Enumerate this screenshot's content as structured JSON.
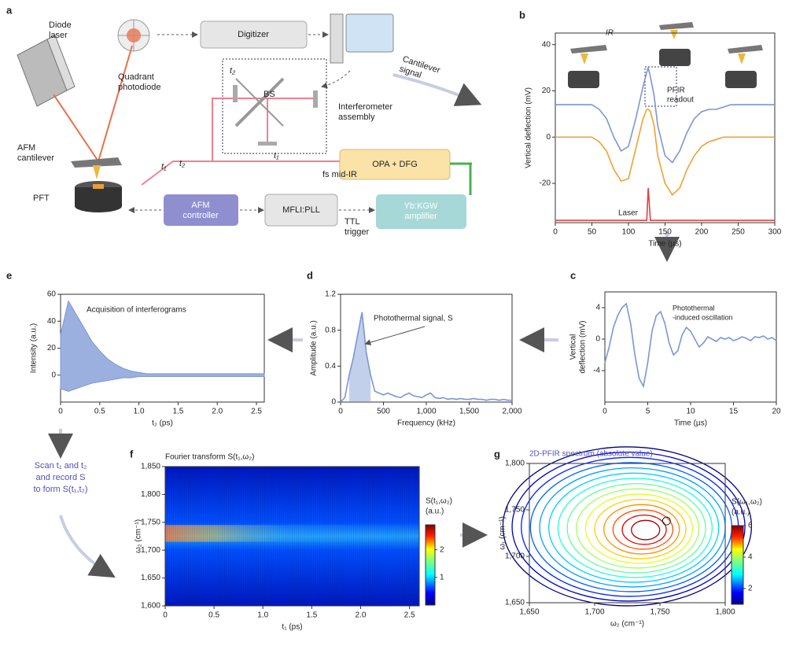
{
  "diagram": {
    "panel": "a",
    "labels": [
      [
        "Diode",
        "laser"
      ],
      [
        "Quadrant",
        "photodiode"
      ],
      [
        "Digitizer"
      ],
      [
        "Cantilever",
        "signal"
      ],
      [
        "BS"
      ],
      [
        "Interferometer",
        "assembly"
      ],
      [
        "AFM",
        "cantilever"
      ],
      [
        "PFT"
      ],
      [
        "fs mid-IR"
      ],
      [
        "OPA + DFG"
      ],
      [
        "AFM",
        "controller"
      ],
      [
        "MFLI:PLL"
      ],
      [
        "TTL",
        "trigger"
      ],
      [
        "Yb:KGW",
        "amplifier"
      ],
      [
        "t₁"
      ],
      [
        "t₂"
      ],
      [
        "t₁"
      ],
      [
        "t₂"
      ]
    ]
  },
  "side_note": [
    "Scan t₁ and t₂",
    "and record S",
    "to form S(t₁,t₂)"
  ],
  "chart_data": [
    {
      "type": "line",
      "panel": "b",
      "xlabel": "Time (µs)",
      "ylabel": "Vertical deflection (mV)",
      "x": [
        0,
        10,
        20,
        30,
        40,
        50,
        60,
        70,
        80,
        90,
        100,
        110,
        120,
        125,
        127,
        130,
        135,
        140,
        150,
        160,
        170,
        180,
        190,
        200,
        210,
        220,
        230,
        240,
        250,
        260,
        270,
        280,
        290,
        300
      ],
      "series": [
        {
          "color": "#7b96d4",
          "values": [
            14,
            14,
            14,
            14,
            14,
            14,
            12,
            8,
            0,
            -6,
            -4,
            8,
            22,
            28,
            30,
            26,
            18,
            5,
            -8,
            -11,
            -6,
            2,
            8,
            11,
            12,
            12,
            13,
            14,
            14,
            14,
            14,
            14,
            14,
            14
          ]
        },
        {
          "color": "#f0a030",
          "values": [
            0,
            0,
            0,
            0,
            0,
            0,
            -2,
            -6,
            -14,
            -19,
            -18,
            -5,
            8,
            12,
            12,
            11,
            5,
            -8,
            -20,
            -25,
            -22,
            -14,
            -8,
            -4,
            -2,
            -1,
            0,
            0,
            0,
            0,
            0,
            0,
            0,
            0
          ]
        },
        {
          "color": "#e04040",
          "values": [
            -36,
            -36,
            -36,
            -36,
            -36,
            -36,
            -36,
            -36,
            -36,
            -36,
            -36,
            -36,
            -36,
            -36,
            -22,
            -36,
            -36,
            -36,
            -36,
            -36,
            -36,
            -36,
            -36,
            -36,
            -36,
            -36,
            -36,
            -36,
            -36,
            -36,
            -36,
            -36,
            -36,
            -36
          ]
        }
      ],
      "xlim": [
        0,
        300
      ],
      "xticks": [
        0,
        50,
        100,
        150,
        200,
        250,
        300
      ],
      "ylim": [
        -37,
        45
      ],
      "yticks": [
        -20,
        0,
        20,
        40
      ],
      "annotations": [
        "IR",
        "PFIR",
        "readout",
        "Laser"
      ]
    },
    {
      "type": "line",
      "panel": "c",
      "xlabel": "Time (µs)",
      "ylabel": [
        "Vertical",
        "deflection (mV)"
      ],
      "x": [
        0,
        0.5,
        1,
        1.5,
        2,
        2.5,
        3,
        3.5,
        4,
        4.5,
        5,
        5.5,
        6,
        6.5,
        7,
        7.5,
        8,
        8.5,
        9,
        9.5,
        10,
        10.5,
        11,
        11.5,
        12,
        12.5,
        13,
        13.5,
        14,
        14.5,
        15,
        15.5,
        16,
        16.5,
        17,
        17.5,
        18,
        18.5,
        19,
        19.5,
        20
      ],
      "series": [
        {
          "color": "#7b96d4",
          "values": [
            -3,
            -1,
            1.5,
            3,
            4,
            4.5,
            2,
            -2,
            -5,
            -6,
            -3,
            1,
            3,
            3.5,
            2,
            -0.5,
            -2,
            -1.5,
            0.5,
            1.5,
            1,
            0,
            -1,
            -0.5,
            0.3,
            0,
            -0.3,
            0.2,
            0,
            0.2,
            -0.2,
            0,
            0.3,
            0.1,
            -0.2,
            0.3,
            0.2,
            0.4,
            0,
            0.2,
            -0.2
          ]
        }
      ],
      "xlim": [
        0,
        20
      ],
      "xticks": [
        0,
        5,
        10,
        15,
        20
      ],
      "ylim": [
        -8,
        6
      ],
      "yticks": [
        -4,
        0,
        4
      ],
      "annotations": [
        "Photothermal",
        "-induced oscillation"
      ]
    },
    {
      "type": "area",
      "panel": "d",
      "xlabel": "Frequency (kHz)",
      "ylabel": "Amplitude (a.u.)",
      "x": [
        0,
        50,
        100,
        150,
        200,
        250,
        300,
        350,
        400,
        450,
        500,
        550,
        600,
        650,
        700,
        750,
        800,
        850,
        900,
        950,
        1000,
        1050,
        1100,
        1150,
        1200,
        1250,
        1300,
        1350,
        1400,
        1450,
        1500,
        1550,
        1600,
        1650,
        1700,
        1750,
        1800,
        1850,
        1900,
        1950,
        2000
      ],
      "series": [
        {
          "color": "#7b96d4",
          "values": [
            0,
            0.05,
            0.3,
            0.5,
            0.75,
            1.0,
            0.55,
            0.3,
            0.12,
            0.1,
            0.08,
            0.1,
            0.08,
            0.06,
            0.05,
            0.08,
            0.1,
            0.07,
            0.06,
            0.05,
            0.08,
            0.1,
            0.05,
            0.04,
            0.05,
            0.03,
            0.04,
            0.03,
            0.04,
            0.03,
            0.03,
            0.04,
            0.03,
            0.03,
            0.02,
            0.03,
            0.03,
            0.02,
            0.03,
            0.02,
            0.02
          ]
        }
      ],
      "xlim": [
        0,
        2000
      ],
      "xticks": [
        0,
        500,
        {
          "value": 1000,
          "label": "1,000"
        },
        {
          "value": 1500,
          "label": "1,500"
        },
        {
          "value": 2000,
          "label": "2,000"
        }
      ],
      "ylim": [
        0,
        1.2
      ],
      "yticks": [
        0,
        0.4,
        0.8,
        1.2
      ],
      "annotations": [
        "Photothermal signal, S"
      ]
    },
    {
      "type": "band",
      "panel": "e",
      "xlabel": "t₂ (ps)",
      "ylabel": "Intensity (a.u.)",
      "x": [
        0,
        0.1,
        0.2,
        0.3,
        0.4,
        0.5,
        0.6,
        0.7,
        0.8,
        0.9,
        1.0,
        1.1,
        1.2,
        1.3,
        1.4,
        1.5,
        1.6,
        1.7,
        1.8,
        1.9,
        2.0,
        2.1,
        2.2,
        2.3,
        2.4,
        2.5,
        2.6
      ],
      "series": [
        {
          "color": "#7b96d4",
          "values": [
            30,
            55,
            45,
            35,
            25,
            18,
            12,
            8,
            5,
            3,
            2,
            1,
            1,
            1,
            1,
            1,
            1,
            1,
            1,
            1,
            1,
            1,
            1,
            1,
            1,
            1,
            1
          ]
        },
        {
          "color": "#7b96d4",
          "values": [
            -10,
            -12,
            -10,
            -8,
            -6,
            -5,
            -4,
            -3,
            -2,
            -2,
            -1,
            -1,
            -1,
            -1,
            -1,
            -1,
            -1,
            -1,
            -1,
            -1,
            -1,
            -1,
            -1,
            -1,
            -1,
            -1,
            -1
          ]
        }
      ],
      "xlim": [
        0,
        2.6
      ],
      "xticks": [
        0,
        0.5,
        {
          "value": 1,
          "label": "1.0"
        },
        1.5,
        {
          "value": 2,
          "label": "2.0"
        },
        2.5
      ],
      "ylim": [
        -20,
        60
      ],
      "yticks": [
        0,
        20,
        40,
        60
      ],
      "annotations": [
        "Acquisition of interferograms"
      ]
    },
    {
      "type": "heatmap",
      "panel": "f",
      "title": "Fourier transform S(t₁,ω₂)",
      "xlabel": "t₁ (ps)",
      "ylabel": "ω₂ (cm⁻¹)",
      "xlim": [
        0,
        2.6
      ],
      "xticks": [
        0,
        0.5,
        {
          "value": 1,
          "label": "1.0"
        },
        1.5,
        {
          "value": 2,
          "label": "2.0"
        },
        2.5
      ],
      "ylim": [
        1600,
        1850
      ],
      "yticks": [
        {
          "value": 1600,
          "label": "1,600"
        },
        {
          "value": 1650,
          "label": "1,650"
        },
        {
          "value": 1700,
          "label": "1,700"
        },
        {
          "value": 1750,
          "label": "1,750"
        },
        {
          "value": 1800,
          "label": "1,800"
        },
        {
          "value": 1850,
          "label": "1,850"
        }
      ],
      "cbar_label": [
        "S(t₁,ω₂)",
        "(a.u.)"
      ],
      "cbar_lim": [
        0,
        2.9
      ],
      "cbar_ticks": [
        1,
        2
      ]
    },
    {
      "type": "contour",
      "panel": "g",
      "title": "2D-PFIR spectrum (absolute value)",
      "xlabel": "ω₂ (cm⁻¹)",
      "ylabel": "ω₁ (cm⁻¹)",
      "xlim": [
        1650,
        1800
      ],
      "xticks": [
        {
          "value": 1650,
          "label": "1,650"
        },
        {
          "value": 1700,
          "label": "1,700"
        },
        {
          "value": 1750,
          "label": "1,750"
        },
        {
          "value": 1800,
          "label": "1,800"
        }
      ],
      "ylim": [
        1650,
        1800
      ],
      "yticks": [
        {
          "value": 1650,
          "label": "1,650"
        },
        {
          "value": 1700,
          "label": "1,700"
        },
        {
          "value": 1750,
          "label": "1,750"
        },
        {
          "value": 1800,
          "label": "1,800"
        }
      ],
      "cbar_label": [
        "S(ω₁,ω₂)",
        "(a.u.)"
      ],
      "cbar_lim": [
        1,
        6
      ],
      "cbar_ticks": [
        2,
        4,
        6
      ]
    }
  ]
}
